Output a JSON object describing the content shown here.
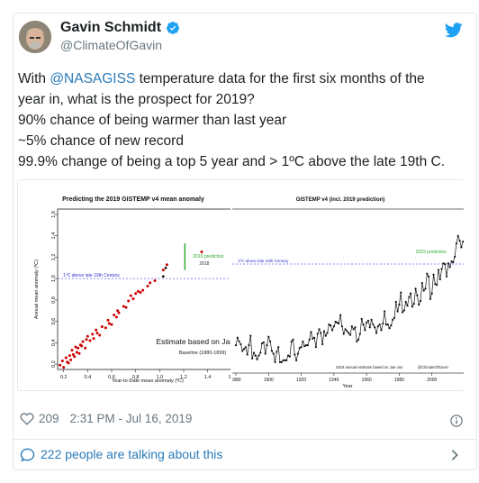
{
  "author": {
    "name": "Gavin Schmidt",
    "handle": "@ClimateOfGavin"
  },
  "tweet": {
    "line1_pre": "With ",
    "line1_mention": "@NASAGISS",
    "line1_post": " temperature data for the first six months of the",
    "line2": "year in, what is the prospect for 2019?",
    "line3": "90% chance of being warmer than last year",
    "line4": "~5% chance of new record",
    "line5": "99.9% change of being a top 5 year and > 1ºC above the late 19th C."
  },
  "footer": {
    "likes": "209",
    "timestamp": "2:31 PM - Jul 16, 2019",
    "talking": "222 people are talking about this"
  },
  "colors": {
    "link": "#2b7bb9",
    "meta": "#697882",
    "point_red": "#cc0000",
    "prediction_green": "#33aa33",
    "dashed_blue": "#5555dd"
  },
  "chart_data": [
    {
      "type": "scatter",
      "title": "Predicting the 2019 GISTEMP v4 mean anomaly",
      "xlabel": "Year-to-Date mean anomaly (ºC)",
      "ylabel": "Annual mean anomaly (ºC)",
      "xlim": [
        0.15,
        1.65
      ],
      "ylim": [
        0.15,
        1.65
      ],
      "xticks": [
        "0.2",
        "0.4",
        "0.6",
        "0.8",
        "1.0",
        "1.2",
        "1.4",
        "1.6"
      ],
      "yticks": [
        "0.2",
        "0.4",
        "0.6",
        "0.8",
        "1.0",
        "1.2",
        "1.4",
        "1.6"
      ],
      "reference_line": {
        "y": 1.0,
        "label": "1ºC above late 19th Century"
      },
      "prediction": {
        "label_line1": "2019 prediction",
        "label_line2": "2018",
        "x": 1.21,
        "y": 1.22,
        "range": [
          1.08,
          1.33
        ]
      },
      "annotation": "Estimate based on Jan-Jun",
      "baseline": "Baseline (1880-1899)",
      "points": [
        [
          0.17,
          0.19
        ],
        [
          0.19,
          0.23
        ],
        [
          0.2,
          0.17
        ],
        [
          0.22,
          0.26
        ],
        [
          0.23,
          0.22
        ],
        [
          0.24,
          0.21
        ],
        [
          0.25,
          0.28
        ],
        [
          0.26,
          0.24
        ],
        [
          0.27,
          0.33
        ],
        [
          0.28,
          0.29
        ],
        [
          0.29,
          0.27
        ],
        [
          0.3,
          0.36
        ],
        [
          0.31,
          0.31
        ],
        [
          0.32,
          0.35
        ],
        [
          0.33,
          0.3
        ],
        [
          0.34,
          0.38
        ],
        [
          0.35,
          0.37
        ],
        [
          0.36,
          0.41
        ],
        [
          0.38,
          0.35
        ],
        [
          0.39,
          0.43
        ],
        [
          0.4,
          0.46
        ],
        [
          0.42,
          0.42
        ],
        [
          0.44,
          0.48
        ],
        [
          0.45,
          0.44
        ],
        [
          0.47,
          0.52
        ],
        [
          0.48,
          0.49
        ],
        [
          0.5,
          0.47
        ],
        [
          0.52,
          0.55
        ],
        [
          0.55,
          0.54
        ],
        [
          0.57,
          0.61
        ],
        [
          0.58,
          0.58
        ],
        [
          0.6,
          0.57
        ],
        [
          0.62,
          0.66
        ],
        [
          0.64,
          0.64
        ],
        [
          0.65,
          0.7
        ],
        [
          0.66,
          0.68
        ],
        [
          0.7,
          0.74
        ],
        [
          0.72,
          0.73
        ],
        [
          0.74,
          0.79
        ],
        [
          0.76,
          0.84
        ],
        [
          0.78,
          0.81
        ],
        [
          0.8,
          0.86
        ],
        [
          0.82,
          0.88
        ],
        [
          0.84,
          0.87
        ],
        [
          0.86,
          0.89
        ],
        [
          0.9,
          0.93
        ],
        [
          0.92,
          0.96
        ],
        [
          0.96,
          0.98
        ],
        [
          1.03,
          1.08
        ],
        [
          1.06,
          1.13
        ],
        [
          1.35,
          1.25
        ]
      ],
      "black_points": [
        [
          1.03,
          1.02
        ],
        [
          1.05,
          1.1
        ]
      ]
    },
    {
      "type": "line",
      "title": "GISTEMP v4 (incl. 2019 prediction)",
      "xlabel": "Year",
      "xlim": [
        1880,
        2020
      ],
      "xticks": [
        "1880",
        "1900",
        "1920",
        "1940",
        "1960",
        "1980",
        "2000"
      ],
      "reference_line_label": "1ºC above late 19th Century",
      "prediction_label": "2019 prediction",
      "footnote_left": "2019 annual estimate based on Jan-Jun",
      "footnote_right": "@ClimateOfGavin",
      "values": [
        0.2,
        0.28,
        0.24,
        0.21,
        0.14,
        0.16,
        0.18,
        0.1,
        0.2,
        0.3,
        0.06,
        0.12,
        0.09,
        0.05,
        0.09,
        0.12,
        0.22,
        0.23,
        0.11,
        0.2,
        0.29,
        0.24,
        0.14,
        0.11,
        0.02,
        0.13,
        0.18,
        0.02,
        0.02,
        0.04,
        0.04,
        0.04,
        0.09,
        0.08,
        0.24,
        0.26,
        0.1,
        0.04,
        0.11,
        0.17,
        0.18,
        0.24,
        0.19,
        0.2,
        0.2,
        0.26,
        0.34,
        0.27,
        0.28,
        0.18,
        0.32,
        0.37,
        0.33,
        0.21,
        0.35,
        0.3,
        0.33,
        0.42,
        0.41,
        0.36,
        0.4,
        0.45,
        0.44,
        0.43,
        0.52,
        0.4,
        0.32,
        0.37,
        0.35,
        0.33,
        0.31,
        0.4,
        0.37,
        0.39,
        0.24,
        0.26,
        0.32,
        0.48,
        0.42,
        0.36,
        0.44,
        0.46,
        0.39,
        0.47,
        0.42,
        0.39,
        0.33,
        0.4,
        0.42,
        0.36,
        0.43,
        0.56,
        0.42,
        0.42,
        0.38,
        0.41,
        0.47,
        0.49,
        0.66,
        0.56,
        0.63,
        0.76,
        0.55,
        0.57,
        0.66,
        0.62,
        0.71,
        0.75,
        0.61,
        0.64,
        0.8,
        0.73,
        0.63,
        0.67,
        0.86,
        0.78,
        0.8,
        0.96,
        0.93,
        0.69,
        0.75,
        0.95,
        0.85,
        0.84,
        1.0,
        0.9,
        1.01,
        1.07,
        1.06,
        0.93,
        1.07,
        1.03,
        1.09,
        1.08,
        1.14,
        1.28,
        1.36,
        1.31,
        1.24,
        1.3,
        1.3
      ]
    }
  ]
}
